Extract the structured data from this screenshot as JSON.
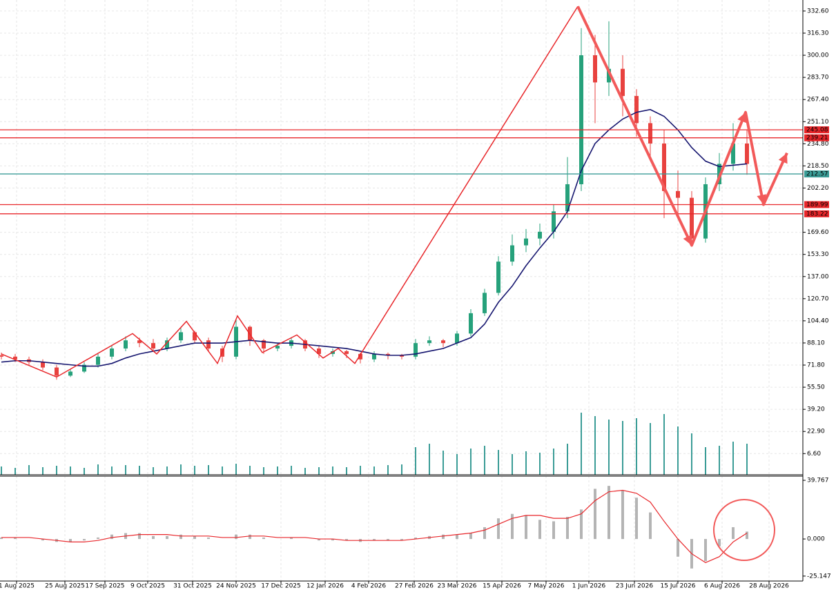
{
  "chart_data": {
    "type": "candlestick",
    "open": [
      79,
      78,
      76,
      74,
      70,
      64,
      67,
      72,
      78,
      84,
      90,
      88,
      84,
      90,
      96,
      90,
      84,
      78,
      100,
      90,
      84,
      86,
      90,
      84,
      80,
      82,
      80,
      76,
      80,
      79,
      78,
      88,
      90,
      88,
      95,
      110,
      125,
      148,
      160,
      165,
      170,
      185,
      205,
      300,
      280,
      290,
      270,
      250,
      235,
      200,
      195,
      165,
      205,
      220,
      235
    ],
    "high": [
      81,
      80,
      78,
      76,
      72,
      69,
      74,
      80,
      86,
      93,
      92,
      91,
      92,
      99,
      97,
      92,
      86,
      106,
      101,
      91,
      88,
      92,
      91,
      86,
      84,
      83,
      81,
      82,
      81,
      80,
      91,
      93,
      91,
      97,
      113,
      128,
      152,
      168,
      172,
      176,
      190,
      225,
      320,
      315,
      325,
      300,
      275,
      255,
      245,
      215,
      200,
      210,
      228,
      250,
      245
    ],
    "low": [
      76,
      74,
      72,
      68,
      61,
      63,
      66,
      70,
      76,
      82,
      85,
      82,
      82,
      88,
      88,
      82,
      74,
      76,
      86,
      80,
      82,
      84,
      82,
      77,
      78,
      77,
      73,
      74,
      76,
      76,
      76,
      86,
      85,
      86,
      93,
      108,
      123,
      145,
      155,
      160,
      165,
      180,
      200,
      250,
      270,
      255,
      240,
      225,
      180,
      180,
      160,
      162,
      200,
      215,
      212
    ],
    "close": [
      78,
      76,
      74,
      70,
      64,
      67,
      72,
      78,
      84,
      90,
      88,
      84,
      90,
      96,
      90,
      84,
      78,
      100,
      90,
      84,
      86,
      90,
      84,
      80,
      82,
      80,
      76,
      80,
      79,
      78,
      88,
      90,
      88,
      95,
      110,
      125,
      148,
      160,
      165,
      170,
      185,
      205,
      300,
      280,
      290,
      270,
      250,
      235,
      200,
      195,
      165,
      205,
      220,
      235,
      220
    ],
    "up_color": "#26a17b",
    "down_color": "#e8423f",
    "moving_average": {
      "color": "#14146e",
      "values": [
        74,
        75,
        75,
        74,
        73,
        72,
        71,
        71,
        73,
        77,
        80,
        82,
        84,
        86,
        88,
        88,
        88,
        89,
        90,
        89,
        88,
        88,
        87,
        86,
        85,
        84,
        82,
        80,
        79,
        79,
        80,
        82,
        84,
        88,
        92,
        102,
        118,
        130,
        145,
        158,
        170,
        185,
        215,
        235,
        245,
        253,
        258,
        260,
        255,
        245,
        232,
        222,
        218,
        219,
        220
      ]
    },
    "volume": {
      "color": "#3a9c96",
      "vlim": [
        0,
        100
      ],
      "values": [
        12,
        10,
        14,
        11,
        13,
        12,
        10,
        15,
        12,
        14,
        13,
        11,
        12,
        15,
        13,
        14,
        12,
        16,
        13,
        11,
        12,
        13,
        10,
        11,
        12,
        11,
        13,
        12,
        14,
        15,
        40,
        45,
        35,
        30,
        38,
        42,
        36,
        30,
        34,
        32,
        38,
        45,
        90,
        85,
        80,
        78,
        82,
        75,
        88,
        70,
        60,
        40,
        42,
        48,
        45
      ]
    },
    "zigzag": {
      "color": "#e8262a",
      "x": [
        0,
        4,
        9.5,
        11.25,
        13.4,
        15.65,
        17.1,
        18.9,
        21.4,
        23.3,
        24.4,
        25.6,
        41.75
      ],
      "y": [
        80,
        63,
        95,
        80,
        104,
        73,
        108,
        81,
        94,
        77,
        84,
        73,
        336
      ]
    },
    "forecast": {
      "color": "#f25a5a",
      "x": [
        41.75,
        50,
        53.9,
        55.2,
        56.9
      ],
      "y": [
        336,
        160,
        258,
        190,
        228
      ]
    },
    "levels": [
      {
        "value": 245.08,
        "label": "245.08",
        "color": "#e8262a"
      },
      {
        "value": 239.21,
        "label": "239.21",
        "color": "#e8262a"
      },
      {
        "value": 212.57,
        "label": "212.57",
        "color": "#3a9c96"
      },
      {
        "value": 189.99,
        "label": "189.99",
        "color": "#e8262a"
      },
      {
        "value": 183.22,
        "label": "183.22",
        "color": "#e8262a"
      }
    ],
    "ylim": [
      -9.0,
      340.7
    ],
    "yticks": [
      {
        "value": 332.6,
        "label": "332.60"
      },
      {
        "value": 316.3,
        "label": "316.30"
      },
      {
        "value": 300,
        "label": "300.00"
      },
      {
        "value": 283.7,
        "label": "283.70"
      },
      {
        "value": 267.4,
        "label": "267.40"
      },
      {
        "value": 251.1,
        "label": "251.10"
      },
      {
        "value": 234.8,
        "label": "234.80"
      },
      {
        "value": 218.5,
        "label": "218.50"
      },
      {
        "value": 202.2,
        "label": "202.20"
      },
      {
        "value": 169.6,
        "label": "169.60"
      },
      {
        "value": 153.3,
        "label": "153.30"
      },
      {
        "value": 137,
        "label": "137.00"
      },
      {
        "value": 120.7,
        "label": "120.70"
      },
      {
        "value": 104.4,
        "label": "104.40"
      },
      {
        "value": 88.1,
        "label": "88.10"
      },
      {
        "value": 71.8,
        "label": "71.80"
      },
      {
        "value": 55.5,
        "label": "55.50"
      },
      {
        "value": 39.2,
        "label": "39.20"
      },
      {
        "value": 22.9,
        "label": "22.90"
      },
      {
        "value": 6.6,
        "label": "6.60"
      }
    ],
    "xticks": [
      {
        "value": 1.1,
        "label": "1 Aug 2025"
      },
      {
        "value": 4.6,
        "label": "25 Aug 2025"
      },
      {
        "value": 7.5,
        "label": "17 Sep 2025"
      },
      {
        "value": 10.6,
        "label": "9 Oct 2025"
      },
      {
        "value": 13.85,
        "label": "31 Oct 2025"
      },
      {
        "value": 17,
        "label": "24 Nov 2025"
      },
      {
        "value": 20.25,
        "label": "17 Dec 2025"
      },
      {
        "value": 23.45,
        "label": "12 Jan 2026"
      },
      {
        "value": 26.6,
        "label": "4 Feb 2026"
      },
      {
        "value": 29.9,
        "label": "27 Feb 2026"
      },
      {
        "value": 33,
        "label": "23 Mar 2026"
      },
      {
        "value": 36.25,
        "label": "15 Apr 2026"
      },
      {
        "value": 39.45,
        "label": "7 May 2026"
      },
      {
        "value": 42.55,
        "label": "1 Jun 2026"
      },
      {
        "value": 45.85,
        "label": "23 Jun 2026"
      },
      {
        "value": 49,
        "label": "15 Jul 2026"
      },
      {
        "value": 52.2,
        "label": "6 Aug 2026"
      },
      {
        "value": 55.6,
        "label": "28 Aug 2026"
      }
    ],
    "oscillator": {
      "histogram_color": "#b4b4b4",
      "signal_color": "#e8262a",
      "histogram": [
        1,
        1,
        0,
        -1,
        -2,
        -2,
        -1,
        1,
        3,
        4,
        4,
        2,
        2,
        3,
        2,
        1,
        0,
        3,
        3,
        1,
        0,
        1,
        0,
        -1,
        -1,
        -1,
        -2,
        -1,
        -1,
        -1,
        1,
        2,
        3,
        3,
        4,
        8,
        14,
        17,
        16,
        13,
        12,
        15,
        20,
        34,
        36,
        33,
        28,
        18,
        0,
        -12,
        -20,
        -15,
        -5,
        8,
        5
      ],
      "signal": [
        1,
        1,
        1,
        0,
        -1,
        -2,
        -2,
        -1,
        1,
        2,
        3,
        3,
        3,
        2,
        2,
        2,
        1,
        1,
        2,
        2,
        1,
        1,
        1,
        0,
        0,
        -1,
        -1,
        -1,
        -1,
        -1,
        0,
        1,
        2,
        3,
        4,
        6,
        10,
        14,
        16,
        16,
        14,
        14,
        17,
        26,
        32,
        33,
        31,
        25,
        12,
        0,
        -10,
        -16,
        -12,
        -2,
        4
      ],
      "ylim": [
        -28.5,
        42.6
      ],
      "yticks": [
        {
          "value": 39.767,
          "label": "39.767"
        },
        {
          "value": 0,
          "label": "0.000"
        },
        {
          "value": -25.147,
          "label": "-25.147"
        }
      ]
    },
    "grid": true
  }
}
